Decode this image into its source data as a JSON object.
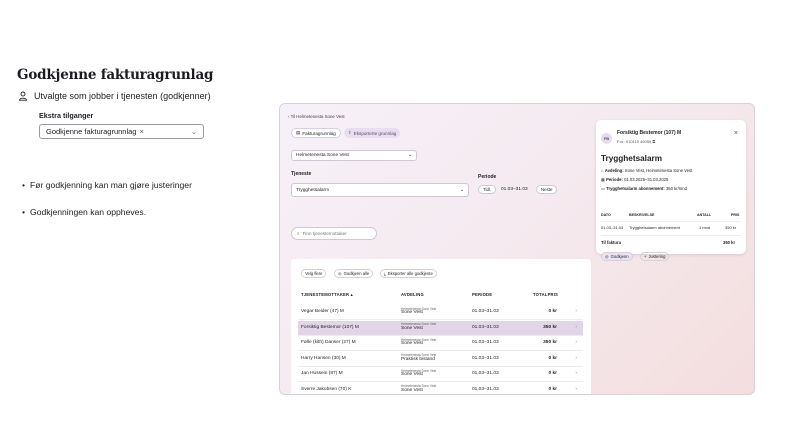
{
  "page": {
    "title": "Godkjenne fakturagrunlag",
    "role_text": "Utvalgte som jobber i tjenesten (godkjenner)",
    "extra_access_label": "Ekstra tilganger",
    "extra_access_value": "Godkjenne fakturagrunnlag",
    "bullets": [
      "Før godkjenning kan man gjøre justeringer",
      "Godkjenningen kan oppheves."
    ]
  },
  "app": {
    "breadcrumb": "Til Helmetenesta Sone Vest",
    "tabs": [
      "Fakturagrunnlag",
      "Eksporterte grunnlag"
    ],
    "unit_select": "Helmetenesta Sone Vest",
    "service_label": "Tjeneste",
    "service_value": "Trygghetsalarm",
    "period_label": "Periode",
    "period_prev": "Tidl.",
    "period_value": "01.03–31.03",
    "period_next": "Neste",
    "search_placeholder": "Finn tjenestemottaker",
    "actions": [
      "Velg flere",
      "Godkjenn alle",
      "Eksporter alle godkjente"
    ],
    "columns": [
      "TJENESTEMOTTAKER",
      "AVDELING",
      "PERIODE",
      "TOTALPRIS"
    ],
    "rows": [
      {
        "name": "Vegar Beider (47) M",
        "dept_small": "Heimetenesta Sone Vest",
        "dept": "Sone Vest",
        "period": "01.03–31.03",
        "price": "0 kr"
      },
      {
        "name": "Forsiktig Bestemor (107) M",
        "dept_small": "Heimetenesta Sone Vest",
        "dept": "Sone Vest",
        "period": "01.03–31.03",
        "price": "350 kr"
      },
      {
        "name": "Følle (kith) Danser (27) M",
        "dept_small": "Heimetenesta Sone Vest",
        "dept": "Sone Vest",
        "period": "01.03–31.03",
        "price": "350 kr"
      },
      {
        "name": "Harry Hansen (30) M",
        "dept_small": "Heimetenesta Sone Vest",
        "dept": "Praktisk bistand",
        "period": "01.03–31.03",
        "price": "0 kr"
      },
      {
        "name": "Jan Hussein (87) M",
        "dept_small": "Heimetenesta Sone Vest",
        "dept": "Sone Vest",
        "period": "01.03–31.03",
        "price": "0 kr"
      },
      {
        "name": "Sverre Jakobsen (70) K",
        "dept_small": "Heimetenesta Sone Vest",
        "dept": "Sone Vest",
        "period": "01.03–31.03",
        "price": "0 kr"
      }
    ]
  },
  "detail": {
    "initials": "FB",
    "name": "Forsiktig Bestemor (107) M",
    "fnr": "F.nr: 010110 49059",
    "service": "Trygghetsalarm",
    "dept_label": "Avdeling:",
    "dept_value": "Sone Vest, Heimetenesta Sone Vest",
    "period_label": "Periode:",
    "period_value": "01.03.2025–31.03.2025",
    "subscription_label": "Trygghetsalarm abonnement:",
    "subscription_value": "350 kr/mnd",
    "table_headers": [
      "DATO",
      "BESKRIVELSE",
      "ANTALL",
      "PRIS"
    ],
    "line": {
      "date": "01.03–31.03",
      "desc": "Trygghetsalarm abonnement",
      "qty": "1 mnd",
      "price": "350 kr"
    },
    "total_label": "Til faktura",
    "total_value": "350 kr",
    "approve_label": "Godkjenn",
    "adjust_label": "Justering"
  }
}
